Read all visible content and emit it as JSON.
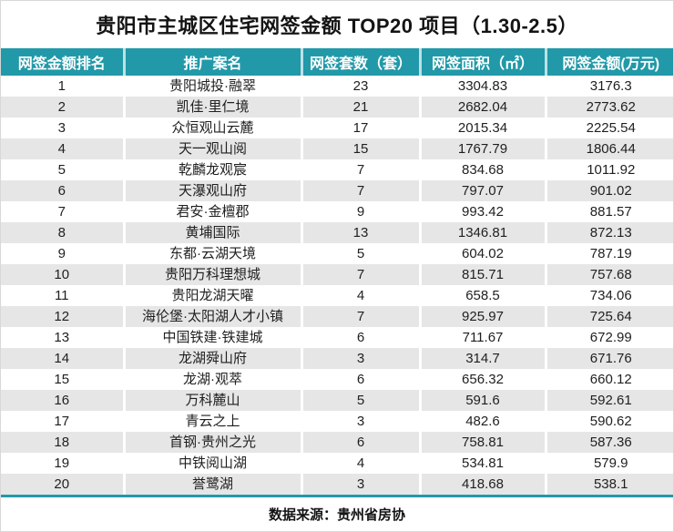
{
  "title": "贵阳市主城区住宅网签金额 TOP20 项目（1.30-2.5）",
  "chart_data": {
    "type": "table",
    "title": "贵阳市主城区住宅网签金额 TOP20 项目（1.30-2.5）",
    "columns": [
      "网签金额排名",
      "推广案名",
      "网签套数（套）",
      "网签面积（㎡）",
      "网签金额(万元)"
    ],
    "rows": [
      [
        "1",
        "贵阳城投·融翠",
        "23",
        "3304.83",
        "3176.3"
      ],
      [
        "2",
        "凯佳·里仁境",
        "21",
        "2682.04",
        "2773.62"
      ],
      [
        "3",
        "众恒观山云麓",
        "17",
        "2015.34",
        "2225.54"
      ],
      [
        "4",
        "天一观山阅",
        "15",
        "1767.79",
        "1806.44"
      ],
      [
        "5",
        "乾麟龙观宸",
        "7",
        "834.68",
        "1011.92"
      ],
      [
        "6",
        "天瀑观山府",
        "7",
        "797.07",
        "901.02"
      ],
      [
        "7",
        "君安·金檀郡",
        "9",
        "993.42",
        "881.57"
      ],
      [
        "8",
        "黄埔国际",
        "13",
        "1346.81",
        "872.13"
      ],
      [
        "9",
        "东都·云湖天境",
        "5",
        "604.02",
        "787.19"
      ],
      [
        "10",
        "贵阳万科理想城",
        "7",
        "815.71",
        "757.68"
      ],
      [
        "11",
        "贵阳龙湖天曜",
        "4",
        "658.5",
        "734.06"
      ],
      [
        "12",
        "海伦堡·太阳湖人才小镇",
        "7",
        "925.97",
        "725.64"
      ],
      [
        "13",
        "中国铁建·铁建城",
        "6",
        "711.67",
        "672.99"
      ],
      [
        "14",
        "龙湖舜山府",
        "3",
        "314.7",
        "671.76"
      ],
      [
        "15",
        "龙湖·观萃",
        "6",
        "656.32",
        "660.12"
      ],
      [
        "16",
        "万科麓山",
        "5",
        "591.6",
        "592.61"
      ],
      [
        "17",
        "青云之上",
        "3",
        "482.6",
        "590.62"
      ],
      [
        "18",
        "首钢·贵州之光",
        "6",
        "758.81",
        "587.36"
      ],
      [
        "19",
        "中铁阅山湖",
        "4",
        "534.81",
        "579.9"
      ],
      [
        "20",
        "誉鹭湖",
        "3",
        "418.68",
        "538.1"
      ]
    ]
  },
  "footer": {
    "source": "数据来源：贵州省房协"
  },
  "colors": {
    "header_bg": "#2199A8",
    "header_text": "#FFFFFF",
    "alt_row_bg": "#E6E6E6"
  }
}
